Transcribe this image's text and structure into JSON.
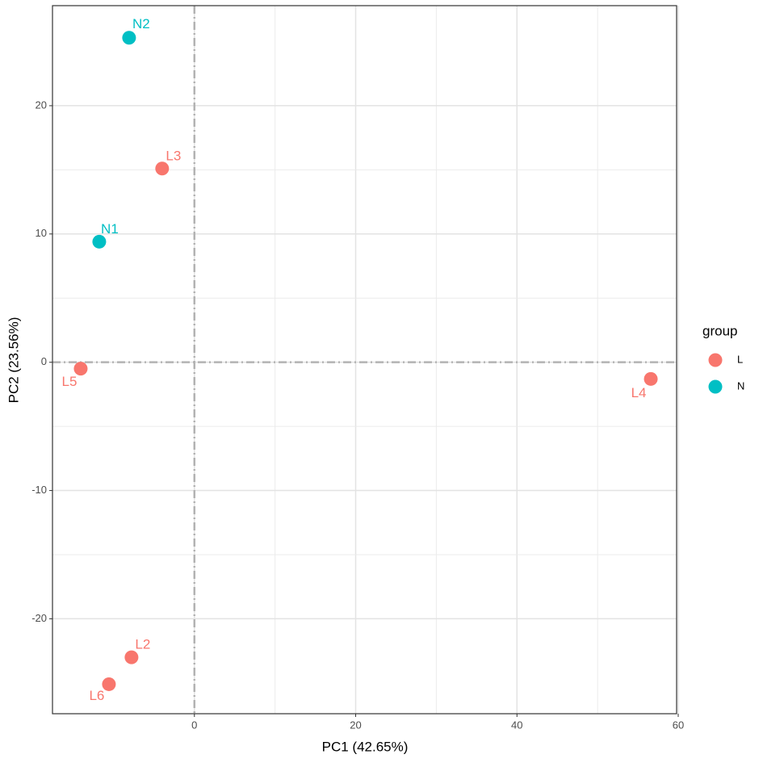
{
  "chart_data": {
    "type": "scatter",
    "x_label": "PC1 (42.65%)",
    "y_label": "PC2 (23.56%)",
    "legend_title": "group",
    "series": [
      {
        "name": "L",
        "color": "#F8766D",
        "labels": [
          "L3",
          "L5",
          "L4",
          "L2",
          "L6"
        ],
        "x": [
          -4.0,
          -14.1,
          56.6,
          -7.8,
          -10.6
        ],
        "y": [
          15.1,
          -0.5,
          -1.3,
          -23.0,
          -25.1
        ]
      },
      {
        "name": "N",
        "color": "#00BFC4",
        "labels": [
          "N2",
          "N1"
        ],
        "x": [
          -8.1,
          -11.8
        ],
        "y": [
          25.3,
          9.4
        ]
      }
    ],
    "xlim": [
      -17.6,
      59.8
    ],
    "ylim": [
      -27.4,
      27.8
    ],
    "xticks": [
      0,
      20,
      40,
      60
    ],
    "yticks": [
      -20,
      -10,
      0,
      10,
      20
    ],
    "hline": 0,
    "vline": 0,
    "grid": true,
    "legend": "right"
  }
}
